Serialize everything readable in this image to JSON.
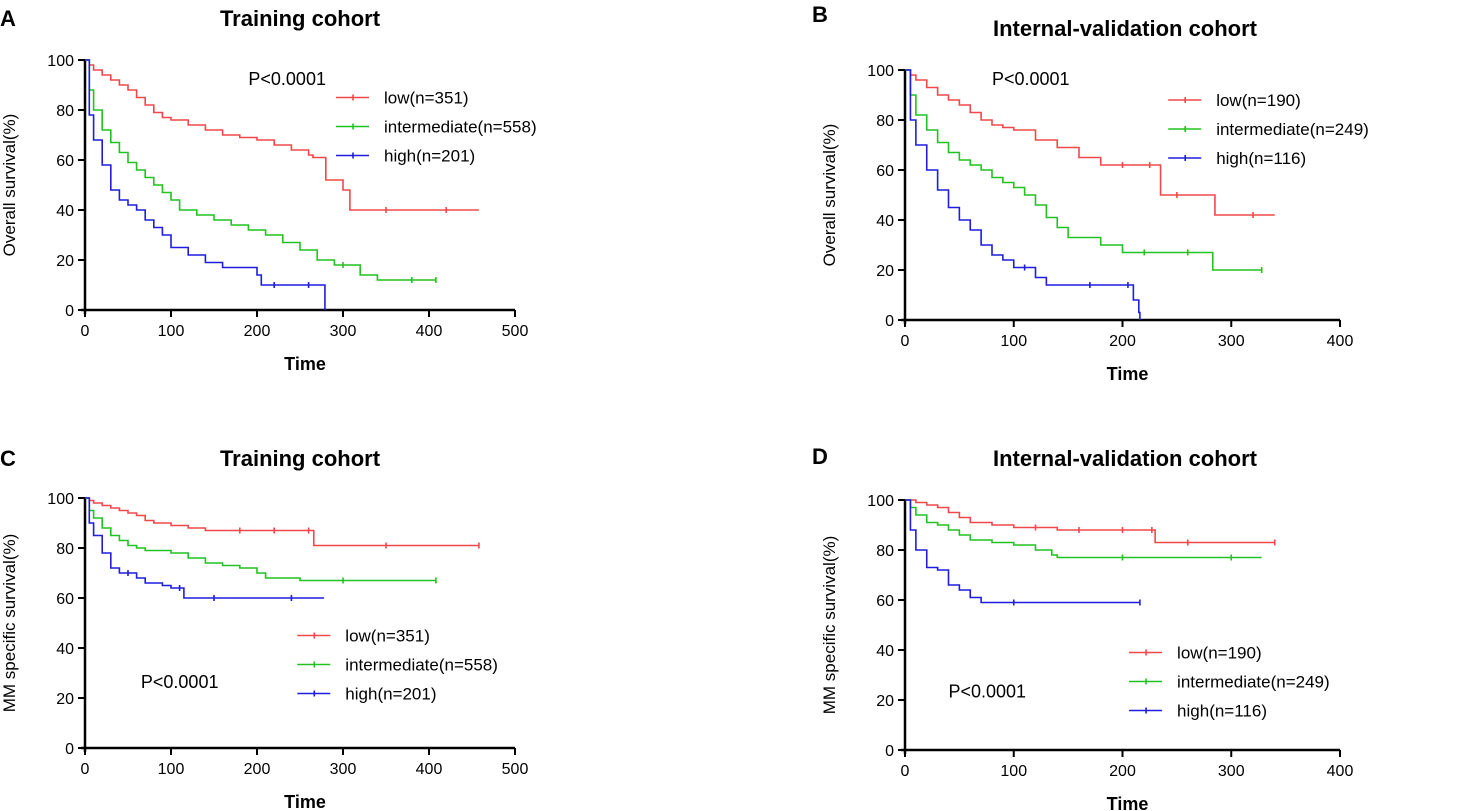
{
  "chart_data": [
    {
      "panel": "A",
      "type": "line",
      "title": "Training cohort",
      "xlabel": "Time",
      "ylabel": "Overall survival(%)",
      "xlim": [
        0,
        500
      ],
      "ylim": [
        0,
        100
      ],
      "xticks": [
        0,
        100,
        200,
        300,
        400,
        500
      ],
      "yticks": [
        0,
        20,
        40,
        60,
        80,
        100
      ],
      "annotation": "P<0.0001",
      "annotation_pos": [
        38,
        90
      ],
      "legend_pos": [
        70,
        85
      ],
      "series": [
        {
          "name": "low(n=351)",
          "color": "#f0484a",
          "x": [
            0,
            5,
            10,
            20,
            30,
            40,
            50,
            60,
            70,
            80,
            90,
            100,
            120,
            140,
            160,
            180,
            200,
            220,
            240,
            260,
            265,
            270,
            280,
            300,
            308,
            320,
            350,
            400,
            420,
            458
          ],
          "y": [
            100,
            98,
            96,
            94,
            92,
            90,
            88,
            85,
            82,
            79,
            77,
            76,
            74,
            72,
            70,
            69,
            68,
            66,
            64,
            62,
            61,
            61,
            52,
            48,
            40,
            40,
            40,
            40,
            40,
            40
          ]
        },
        {
          "name": "intermediate(n=558)",
          "color": "#22c222",
          "x": [
            0,
            5,
            10,
            20,
            30,
            40,
            50,
            60,
            70,
            80,
            90,
            100,
            110,
            130,
            150,
            170,
            190,
            210,
            230,
            250,
            270,
            290,
            300,
            320,
            340,
            360,
            380,
            400,
            408
          ],
          "y": [
            100,
            88,
            80,
            72,
            67,
            63,
            59,
            56,
            53,
            50,
            47,
            44,
            40,
            38,
            36,
            34,
            32,
            30,
            27,
            24,
            20,
            18,
            18,
            14,
            12,
            12,
            12,
            12,
            12
          ]
        },
        {
          "name": "high(n=201)",
          "color": "#1e1edc",
          "x": [
            0,
            5,
            10,
            20,
            30,
            40,
            50,
            60,
            70,
            80,
            90,
            100,
            120,
            140,
            160,
            180,
            200,
            205,
            220,
            240,
            260,
            278,
            279
          ],
          "y": [
            100,
            78,
            68,
            58,
            48,
            44,
            42,
            40,
            36,
            33,
            30,
            25,
            22,
            19,
            17,
            17,
            14,
            10,
            10,
            10,
            10,
            10,
            0
          ]
        }
      ]
    },
    {
      "panel": "B",
      "type": "line",
      "title": "Internal-validation cohort",
      "xlabel": "Time",
      "ylabel": "Overall survival(%)",
      "xlim": [
        0,
        400
      ],
      "ylim": [
        0,
        100
      ],
      "xticks": [
        0,
        100,
        200,
        300,
        400
      ],
      "yticks": [
        0,
        20,
        40,
        60,
        80,
        100
      ],
      "annotation": "P<0.0001",
      "annotation_pos": [
        20,
        94
      ],
      "legend_pos": [
        72,
        88
      ],
      "series": [
        {
          "name": "low(n=190)",
          "color": "#f0484a",
          "x": [
            0,
            5,
            10,
            20,
            30,
            40,
            50,
            60,
            70,
            80,
            90,
            100,
            120,
            140,
            160,
            180,
            200,
            220,
            225,
            235,
            250,
            270,
            285,
            300,
            320,
            340
          ],
          "y": [
            100,
            98,
            96,
            93,
            90,
            88,
            86,
            83,
            80,
            78,
            77,
            76,
            72,
            69,
            65,
            62,
            62,
            62,
            62,
            50,
            50,
            50,
            42,
            42,
            42,
            42
          ]
        },
        {
          "name": "intermediate(n=249)",
          "color": "#22c222",
          "x": [
            0,
            5,
            10,
            20,
            30,
            40,
            50,
            60,
            70,
            80,
            90,
            100,
            110,
            120,
            130,
            140,
            150,
            170,
            180,
            200,
            220,
            240,
            260,
            280,
            283,
            300,
            328
          ],
          "y": [
            100,
            90,
            82,
            76,
            71,
            67,
            64,
            62,
            60,
            57,
            55,
            53,
            50,
            46,
            41,
            37,
            33,
            33,
            30,
            27,
            27,
            27,
            27,
            27,
            20,
            20,
            20
          ]
        },
        {
          "name": "high(n=116)",
          "color": "#1e1edc",
          "x": [
            0,
            5,
            10,
            20,
            30,
            40,
            50,
            60,
            70,
            80,
            90,
            100,
            110,
            120,
            130,
            150,
            170,
            190,
            205,
            210,
            215,
            216
          ],
          "y": [
            100,
            80,
            70,
            60,
            52,
            45,
            40,
            36,
            30,
            26,
            24,
            21,
            21,
            17,
            14,
            14,
            14,
            14,
            14,
            8,
            3,
            0
          ]
        }
      ]
    },
    {
      "panel": "C",
      "type": "line",
      "title": "Training cohort",
      "xlabel": "Time",
      "ylabel": "MM specific survival(%)",
      "xlim": [
        0,
        500
      ],
      "ylim": [
        0,
        100
      ],
      "xticks": [
        0,
        100,
        200,
        300,
        400,
        500
      ],
      "yticks": [
        0,
        20,
        40,
        60,
        80,
        100
      ],
      "annotation": "P<0.0001",
      "annotation_pos": [
        13,
        24
      ],
      "legend_pos": [
        61,
        45
      ],
      "series": [
        {
          "name": "low(n=351)",
          "color": "#f0484a",
          "x": [
            0,
            5,
            10,
            20,
            30,
            40,
            50,
            60,
            70,
            80,
            100,
            120,
            140,
            160,
            180,
            200,
            220,
            240,
            260,
            265,
            266,
            300,
            350,
            400,
            458
          ],
          "y": [
            100,
            99,
            98,
            97,
            96,
            95,
            94,
            93,
            91,
            90,
            89,
            88,
            87,
            87,
            87,
            87,
            87,
            87,
            87,
            87,
            81,
            81,
            81,
            81,
            81
          ]
        },
        {
          "name": "intermediate(n=558)",
          "color": "#22c222",
          "x": [
            0,
            5,
            10,
            20,
            30,
            40,
            50,
            60,
            70,
            80,
            100,
            120,
            140,
            160,
            180,
            200,
            210,
            250,
            300,
            350,
            408
          ],
          "y": [
            100,
            95,
            92,
            88,
            85,
            83,
            81,
            80,
            79,
            79,
            78,
            76,
            74,
            73,
            72,
            70,
            68,
            67,
            67,
            67,
            67
          ]
        },
        {
          "name": "high(n=201)",
          "color": "#1e1edc",
          "x": [
            0,
            5,
            10,
            20,
            30,
            40,
            50,
            60,
            70,
            80,
            90,
            100,
            110,
            115,
            150,
            200,
            240,
            278
          ],
          "y": [
            100,
            90,
            85,
            78,
            72,
            70,
            70,
            68,
            66,
            66,
            65,
            64,
            64,
            60,
            60,
            60,
            60,
            60
          ]
        }
      ]
    },
    {
      "panel": "D",
      "type": "line",
      "title": "Internal-validation cohort",
      "xlabel": "Time",
      "ylabel": "MM specific survival(%)",
      "xlim": [
        0,
        400
      ],
      "ylim": [
        0,
        100
      ],
      "xticks": [
        0,
        100,
        200,
        300,
        400
      ],
      "yticks": [
        0,
        20,
        40,
        60,
        80,
        100
      ],
      "annotation": "P<0.0001",
      "annotation_pos": [
        10,
        21
      ],
      "legend_pos": [
        63,
        39
      ],
      "series": [
        {
          "name": "low(n=190)",
          "color": "#f0484a",
          "x": [
            0,
            5,
            10,
            20,
            30,
            40,
            50,
            60,
            80,
            100,
            120,
            140,
            160,
            180,
            200,
            220,
            227,
            230,
            260,
            300,
            340
          ],
          "y": [
            100,
            100,
            99,
            98,
            97,
            95,
            93,
            91,
            90,
            89,
            89,
            88,
            88,
            88,
            88,
            88,
            88,
            83,
            83,
            83,
            83
          ]
        },
        {
          "name": "intermediate(n=249)",
          "color": "#22c222",
          "x": [
            0,
            5,
            10,
            20,
            30,
            40,
            50,
            60,
            80,
            100,
            120,
            135,
            140,
            160,
            200,
            250,
            300,
            328
          ],
          "y": [
            100,
            97,
            94,
            91,
            90,
            88,
            86,
            84,
            83,
            82,
            80,
            78,
            77,
            77,
            77,
            77,
            77,
            77
          ]
        },
        {
          "name": "high(n=116)",
          "color": "#1e1edc",
          "x": [
            0,
            5,
            10,
            20,
            30,
            40,
            50,
            60,
            70,
            80,
            100,
            150,
            216
          ],
          "y": [
            100,
            88,
            80,
            73,
            72,
            66,
            64,
            61,
            59,
            59,
            59,
            59,
            59
          ]
        }
      ]
    }
  ]
}
